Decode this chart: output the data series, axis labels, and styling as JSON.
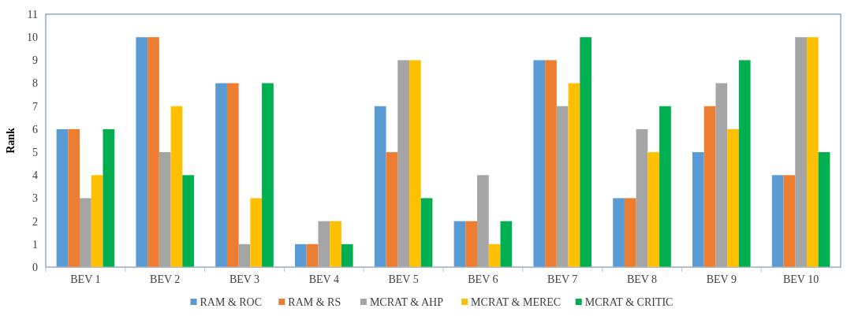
{
  "chart_data": {
    "type": "bar",
    "ylabel": "Rank",
    "categories": [
      "BEV 1",
      "BEV 2",
      "BEV 3",
      "BEV 4",
      "BEV 5",
      "BEV 6",
      "BEV 7",
      "BEV 8",
      "BEV 9",
      "BEV 10"
    ],
    "series": [
      {
        "name": "RAM & ROC",
        "color": "#5b9bd5",
        "values": [
          6,
          10,
          8,
          1,
          7,
          2,
          9,
          3,
          5,
          4
        ]
      },
      {
        "name": "RAM & RS",
        "color": "#ed7d31",
        "values": [
          6,
          10,
          8,
          1,
          5,
          2,
          9,
          3,
          7,
          4
        ]
      },
      {
        "name": "MCRAT & AHP",
        "color": "#a5a5a5",
        "values": [
          3,
          5,
          1,
          2,
          9,
          4,
          7,
          6,
          8,
          10
        ]
      },
      {
        "name": "MCRAT & MEREC",
        "color": "#ffc000",
        "values": [
          4,
          7,
          3,
          2,
          9,
          1,
          8,
          5,
          6,
          10
        ]
      },
      {
        "name": "MCRAT & CRITIC",
        "color": "#00b050",
        "values": [
          6,
          4,
          8,
          1,
          3,
          2,
          10,
          7,
          9,
          5
        ]
      }
    ],
    "ylim": [
      0,
      11
    ],
    "yticks": [
      0,
      1,
      2,
      3,
      4,
      5,
      6,
      7,
      8,
      9,
      10,
      11
    ],
    "grid": false,
    "legend": "bottom"
  }
}
